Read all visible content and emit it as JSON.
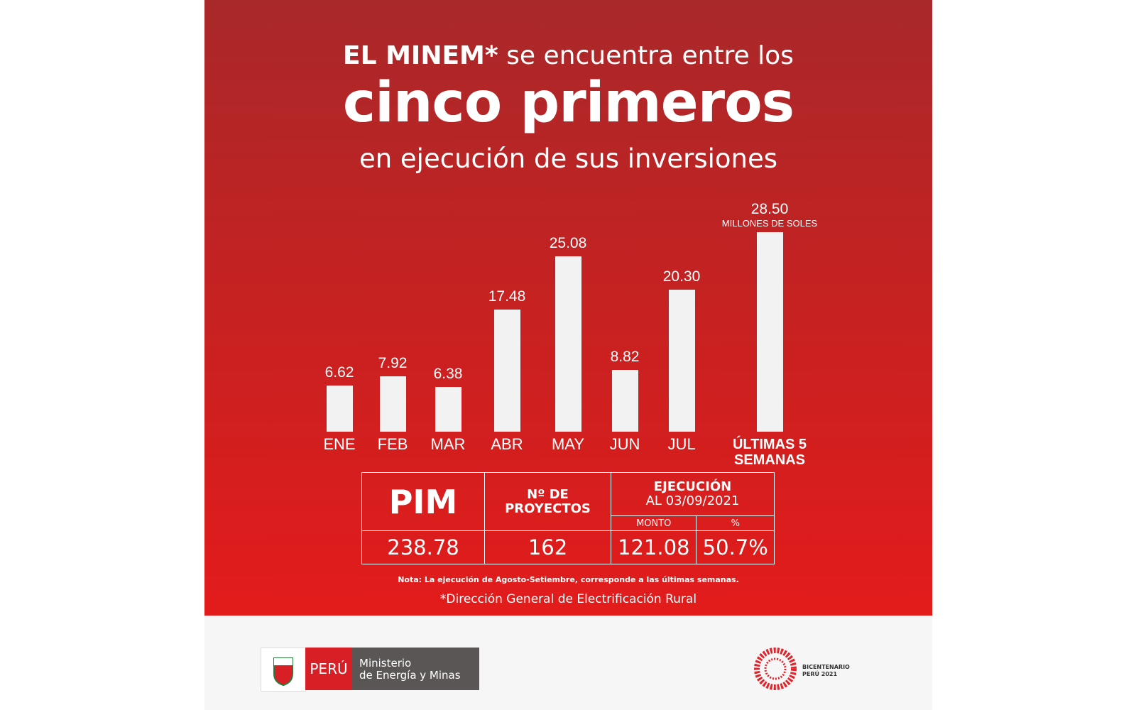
{
  "header": {
    "line1_bold": "EL MINEM*",
    "line1_rest": "se encuentra entre los",
    "line2": "cinco primeros",
    "line3": "en ejecución de sus inversiones"
  },
  "chart_data": {
    "type": "bar",
    "unit_label": "MILLONES DE SOLES",
    "categories": [
      "ENE",
      "FEB",
      "MAR",
      "ABR",
      "MAY",
      "JUN",
      "JUL",
      "ÚLTIMAS 5 SEMANAS"
    ],
    "values": [
      6.62,
      7.92,
      6.38,
      17.48,
      25.08,
      8.82,
      20.3,
      28.5
    ],
    "value_labels": [
      "6.62",
      "7.92",
      "6.38",
      "17.48",
      "25.08",
      "8.82",
      "20.30",
      "28.50"
    ],
    "color": "#f2f2f2"
  },
  "table": {
    "headers": [
      "PIM",
      "Nº DE PROYECTOS",
      "EJECUCIÓN",
      "AL 03/09/2021"
    ],
    "subheaders": [
      "MONTO",
      "%"
    ],
    "row": [
      "238.78",
      "162",
      "121.08",
      "50.7%"
    ]
  },
  "note": "Nota: La ejecución de Agosto-Setiembre, corresponde a las últimas semanas.",
  "footnote": "*Dirección General de Electrificación Rural",
  "footer": {
    "peru": "PERÚ",
    "ministry_line1": "Ministerio",
    "ministry_line2": "de Energía y Minas",
    "bicentenario_line1": "BICENTENARIO",
    "bicentenario_line2": "PERÚ 2021"
  }
}
